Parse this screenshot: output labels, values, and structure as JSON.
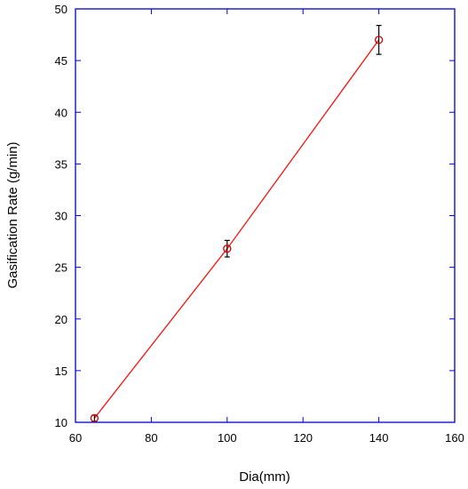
{
  "chart_data": {
    "type": "line",
    "title": "",
    "xlabel": "Dia(mm)",
    "ylabel": "Gasification Rate (g/min)",
    "xlim": [
      60,
      160
    ],
    "ylim": [
      10,
      50
    ],
    "x_ticks": [
      "60",
      "80",
      "100",
      "120",
      "140",
      "160"
    ],
    "y_ticks": [
      "10",
      "15",
      "20",
      "25",
      "30",
      "35",
      "40",
      "45",
      "50"
    ],
    "grid": false,
    "legend": "none",
    "series": [
      {
        "x": [
          65,
          100,
          140
        ],
        "y": [
          10.4,
          26.8,
          47.0
        ],
        "error": [
          0.3,
          0.8,
          1.4
        ],
        "marker": "open-circle"
      }
    ],
    "colors": {
      "axis": "#0000cc",
      "line": "#ff0000",
      "marker": "#cc0000",
      "error_bar": "#000000"
    }
  }
}
